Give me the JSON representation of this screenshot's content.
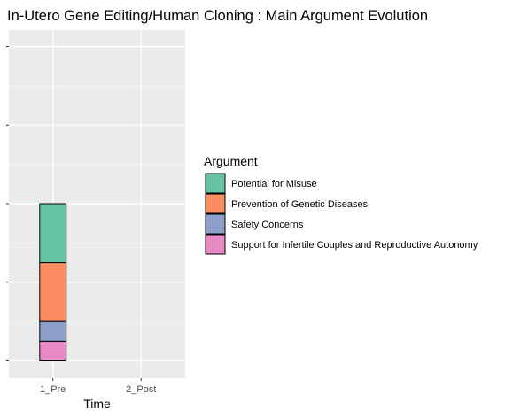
{
  "chart_data": {
    "type": "bar",
    "stacked": true,
    "title": "In-Utero Gene Editing/Human Cloning : Main Argument Evolution",
    "xlabel": "Time",
    "ylabel": "",
    "categories": [
      "1_Pre",
      "2_Post"
    ],
    "ylim": [
      0,
      0.08
    ],
    "y_ticks_labeled": false,
    "grid": true,
    "legend": {
      "title": "Argument",
      "position": "right"
    },
    "series": [
      {
        "name": "Potential for Misuse",
        "color": "#66C2A5",
        "values": [
          0.015,
          0
        ]
      },
      {
        "name": "Prevention of Genetic Diseases",
        "color": "#FC8D62",
        "values": [
          0.015,
          0
        ]
      },
      {
        "name": "Safety Concerns",
        "color": "#8DA0CB",
        "values": [
          0.005,
          0
        ]
      },
      {
        "name": "Support for Infertile Couples and Reproductive Autonomy",
        "color": "#E78AC3",
        "values": [
          0.005,
          0
        ]
      }
    ]
  }
}
